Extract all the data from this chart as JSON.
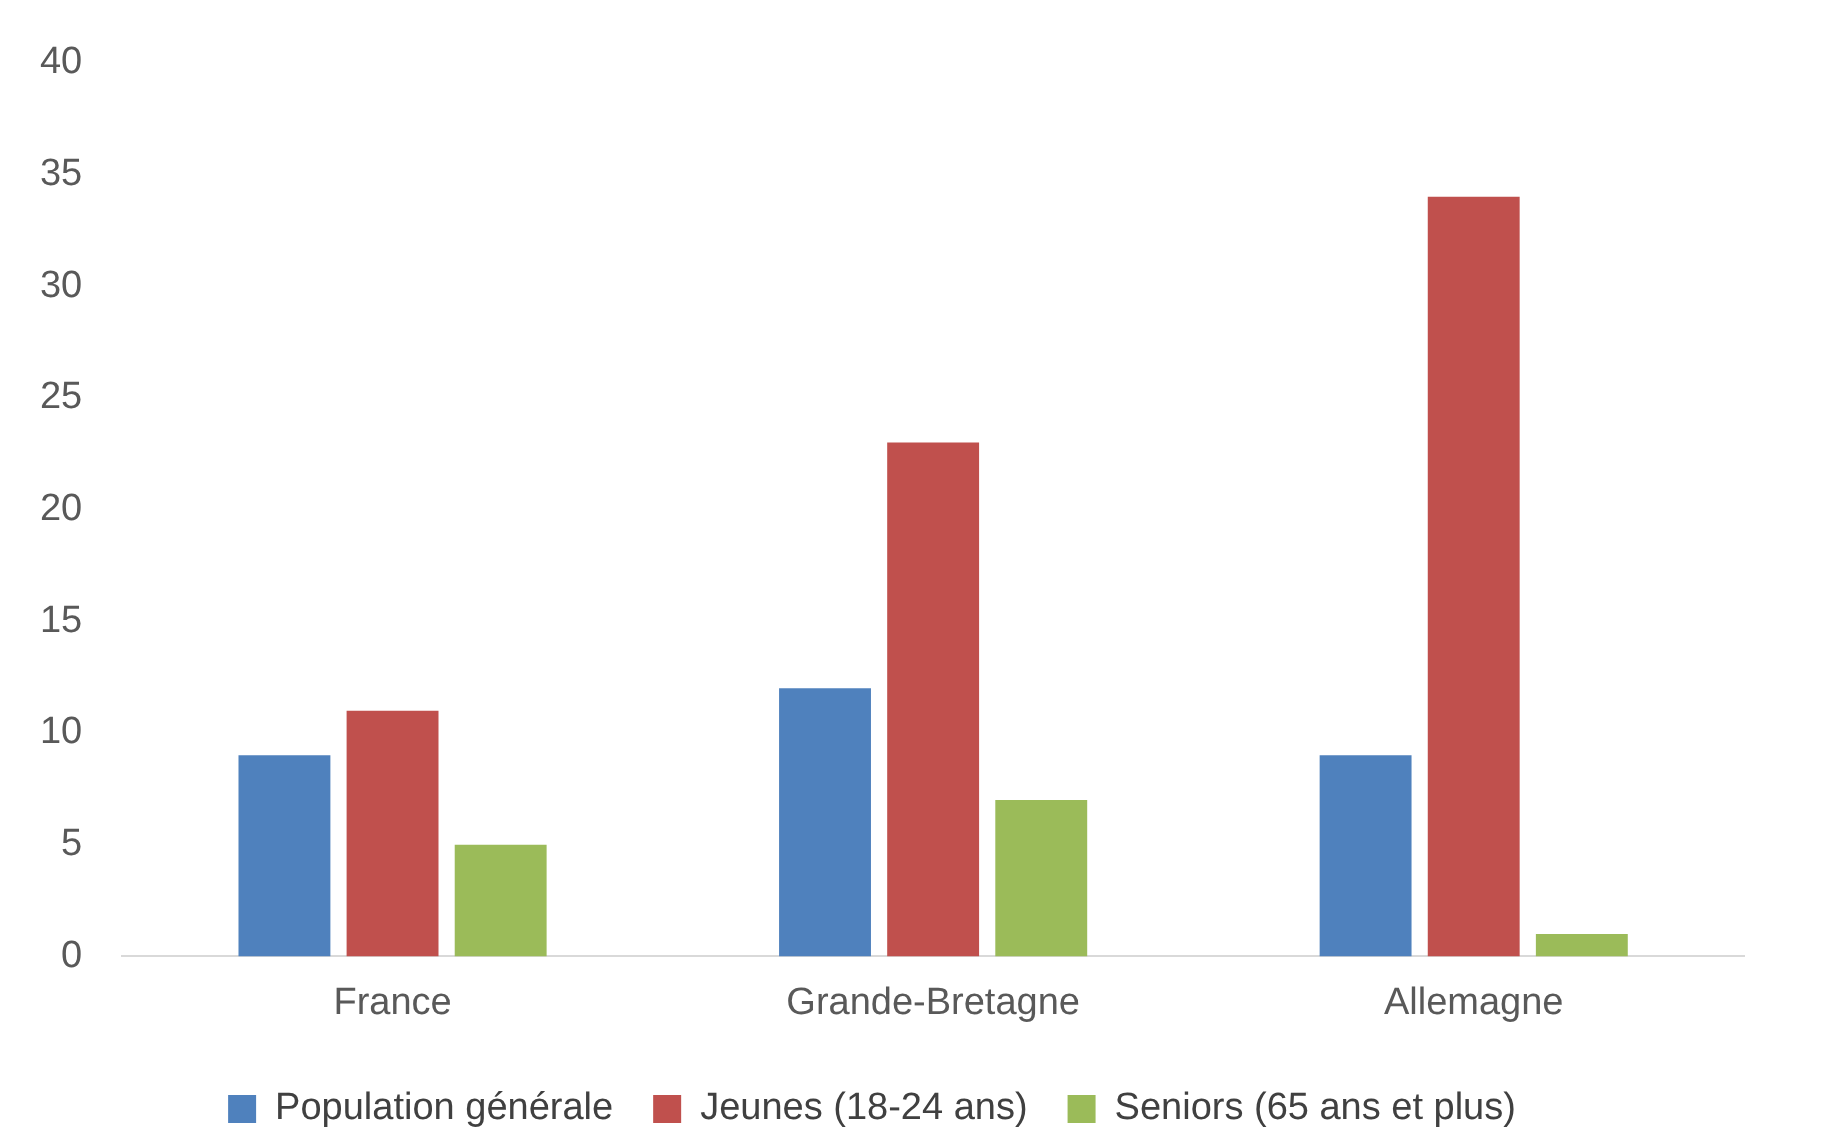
{
  "chart_data": {
    "type": "bar",
    "categories": [
      "France",
      "Grande-Bretagne",
      "Allemagne"
    ],
    "series": [
      {
        "name": "Population générale",
        "color": "#4f81bd",
        "values": [
          9,
          12,
          9
        ]
      },
      {
        "name": "Jeunes (18-24 ans)",
        "color": "#c0504d",
        "values": [
          11,
          23,
          34
        ]
      },
      {
        "name": "Seniors (65 ans et plus)",
        "color": "#9bbb59",
        "values": [
          5,
          7,
          1
        ]
      }
    ],
    "ylim": [
      0,
      40
    ],
    "yticks": [
      0,
      5,
      10,
      15,
      20,
      25,
      30,
      35,
      40
    ],
    "grid": false,
    "legend": "bottom"
  }
}
